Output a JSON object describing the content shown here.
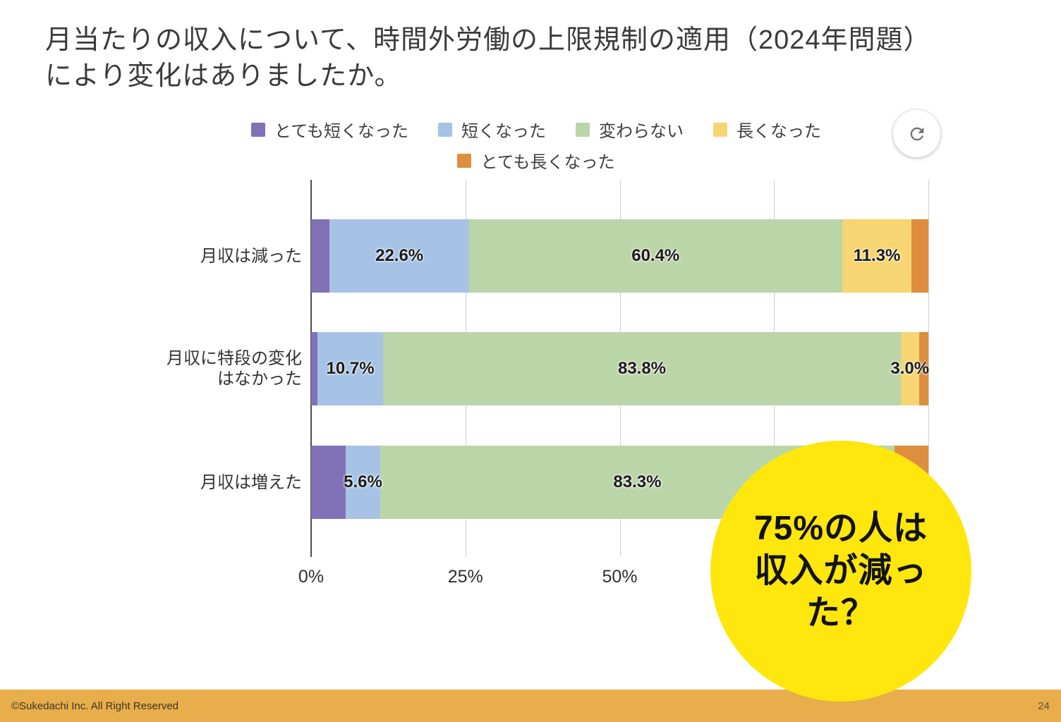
{
  "title": {
    "lines": [
      "月当たりの収入について、時間外労働の上限規制の適用（2024年問題）",
      "により変化はありましたか。"
    ]
  },
  "annotation": {
    "lines": [
      "75%の人は",
      "収入が減っ",
      "た？"
    ],
    "bg_color": "#FFE60D"
  },
  "footer": {
    "copyright": "©Sukedachi Inc. All Right Reserved",
    "page": "24",
    "bg_color": "#E7AE4B"
  },
  "refresh_button": {
    "icon": "refresh-icon",
    "icon_color": "#737373"
  },
  "chart_data": {
    "type": "bar",
    "orientation": "horizontal",
    "stacked": true,
    "title": "月当たりの収入について、時間外労働の上限規制の適用（2024年問題）により変化はありましたか。",
    "unit": "%",
    "xlim": [
      0,
      100
    ],
    "grid_percent": [
      0,
      25,
      50,
      75,
      100
    ],
    "grid_on": true,
    "legend_position": "top",
    "x_ticks": [
      {
        "label": "0%",
        "percent": 0
      },
      {
        "label": "25%",
        "percent": 25
      },
      {
        "label": "50%",
        "percent": 50
      }
    ],
    "categories": [
      "月収は減った",
      "月収に特段の変化\nはなかった",
      "月収は増えた"
    ],
    "series": [
      {
        "name": "とても短くなった",
        "color": "#8172B8",
        "values": [
          3.0,
          1.0,
          5.6
        ],
        "labels": [
          "",
          "",
          ""
        ]
      },
      {
        "name": "短くなった",
        "color": "#A6C3E6",
        "values": [
          22.6,
          10.7,
          5.6
        ],
        "labels": [
          "22.6%",
          "10.7%",
          "5.6%"
        ]
      },
      {
        "name": "変わらない",
        "color": "#BAD5A8",
        "values": [
          60.4,
          83.8,
          83.3
        ],
        "labels": [
          "60.4%",
          "83.8%",
          "83.3%"
        ]
      },
      {
        "name": "長くなった",
        "color": "#F6D572",
        "values": [
          11.3,
          3.0,
          0.0
        ],
        "labels": [
          "11.3%",
          "3.0%",
          ""
        ]
      },
      {
        "name": "とても長くなった",
        "color": "#DD8E3F",
        "values": [
          2.7,
          1.5,
          5.5
        ],
        "labels": [
          "",
          "",
          ""
        ]
      }
    ]
  }
}
